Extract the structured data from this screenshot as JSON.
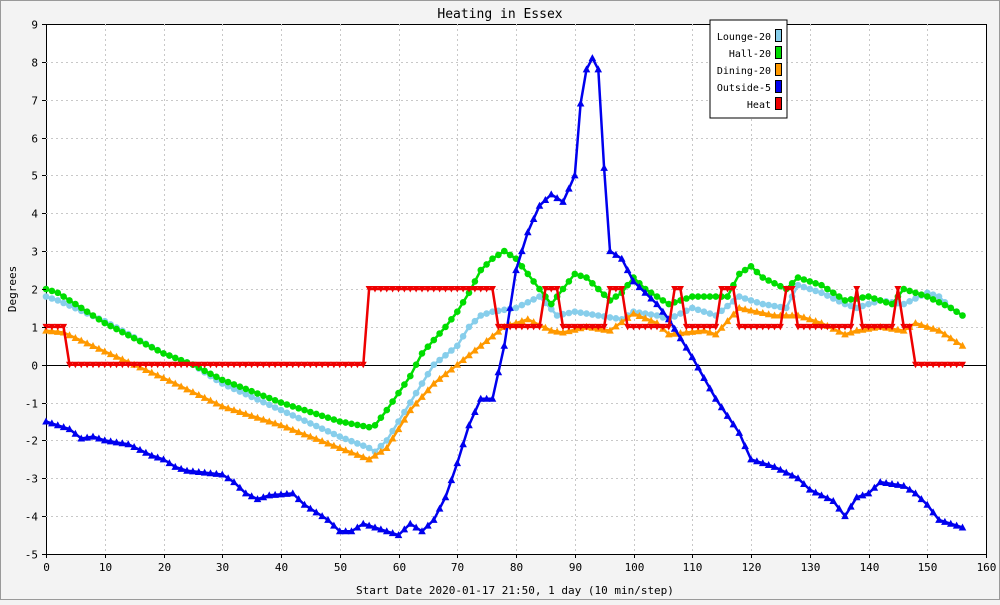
{
  "chart_data": {
    "type": "line",
    "title": "Heating in Essex",
    "xlabel": "Start Date 2020-01-17 21:50, 1 day (10 min/step)",
    "ylabel": "Degrees",
    "xlim": [
      0,
      160
    ],
    "ylim": [
      -5,
      9
    ],
    "xticks": [
      0,
      10,
      20,
      30,
      40,
      50,
      60,
      70,
      80,
      90,
      100,
      110,
      120,
      130,
      140,
      150,
      160
    ],
    "yticks": [
      -5,
      -4,
      -3,
      -2,
      -1,
      0,
      1,
      2,
      3,
      4,
      5,
      6,
      7,
      8,
      9
    ],
    "grid": true,
    "legend_position": "top-right",
    "series": [
      {
        "name": "Lounge-20",
        "color": "#87ceeb",
        "marker": "circle",
        "keypoints": [
          [
            0,
            1.8
          ],
          [
            2,
            1.7
          ],
          [
            10,
            1.15
          ],
          [
            20,
            0.3
          ],
          [
            25,
            0
          ],
          [
            30,
            -0.5
          ],
          [
            40,
            -1.2
          ],
          [
            50,
            -1.9
          ],
          [
            55,
            -2.2
          ],
          [
            56,
            -2.3
          ],
          [
            58,
            -2.0
          ],
          [
            62,
            -1.0
          ],
          [
            66,
            0.0
          ],
          [
            70,
            0.5
          ],
          [
            72,
            1.0
          ],
          [
            74,
            1.3
          ],
          [
            76,
            1.4
          ],
          [
            80,
            1.5
          ],
          [
            84,
            1.8
          ],
          [
            87,
            1.3
          ],
          [
            90,
            1.4
          ],
          [
            94,
            1.3
          ],
          [
            98,
            1.2
          ],
          [
            100,
            1.4
          ],
          [
            104,
            1.3
          ],
          [
            106,
            1.2
          ],
          [
            110,
            1.5
          ],
          [
            114,
            1.3
          ],
          [
            118,
            1.8
          ],
          [
            122,
            1.6
          ],
          [
            126,
            1.5
          ],
          [
            128,
            2.1
          ],
          [
            132,
            1.9
          ],
          [
            136,
            1.6
          ],
          [
            138,
            1.5
          ],
          [
            142,
            1.7
          ],
          [
            146,
            1.6
          ],
          [
            150,
            1.9
          ],
          [
            152,
            1.8
          ],
          [
            154,
            1.5
          ],
          [
            156,
            1.3
          ]
        ]
      },
      {
        "name": "Hall-20",
        "color": "#00dd00",
        "marker": "circle",
        "keypoints": [
          [
            0,
            2.0
          ],
          [
            2,
            1.9
          ],
          [
            10,
            1.1
          ],
          [
            20,
            0.3
          ],
          [
            25,
            0
          ],
          [
            30,
            -0.4
          ],
          [
            40,
            -1.0
          ],
          [
            50,
            -1.5
          ],
          [
            55,
            -1.65
          ],
          [
            56,
            -1.6
          ],
          [
            58,
            -1.2
          ],
          [
            62,
            -0.3
          ],
          [
            64,
            0.3
          ],
          [
            68,
            1.0
          ],
          [
            70,
            1.4
          ],
          [
            72,
            1.9
          ],
          [
            74,
            2.5
          ],
          [
            76,
            2.8
          ],
          [
            78,
            3.0
          ],
          [
            80,
            2.8
          ],
          [
            82,
            2.4
          ],
          [
            86,
            1.6
          ],
          [
            88,
            2.0
          ],
          [
            90,
            2.4
          ],
          [
            92,
            2.3
          ],
          [
            96,
            1.7
          ],
          [
            98,
            1.9
          ],
          [
            100,
            2.3
          ],
          [
            102,
            2.0
          ],
          [
            106,
            1.6
          ],
          [
            110,
            1.8
          ],
          [
            116,
            1.8
          ],
          [
            118,
            2.4
          ],
          [
            120,
            2.6
          ],
          [
            122,
            2.3
          ],
          [
            126,
            2.0
          ],
          [
            128,
            2.3
          ],
          [
            132,
            2.1
          ],
          [
            136,
            1.7
          ],
          [
            140,
            1.8
          ],
          [
            144,
            1.6
          ],
          [
            146,
            2.0
          ],
          [
            150,
            1.8
          ],
          [
            154,
            1.5
          ],
          [
            156,
            1.3
          ]
        ]
      },
      {
        "name": "Dining-20",
        "color": "#ff9900",
        "marker": "triangle",
        "keypoints": [
          [
            0,
            0.9
          ],
          [
            3,
            0.85
          ],
          [
            10,
            0.35
          ],
          [
            20,
            -0.35
          ],
          [
            30,
            -1.1
          ],
          [
            40,
            -1.6
          ],
          [
            50,
            -2.2
          ],
          [
            55,
            -2.5
          ],
          [
            58,
            -2.2
          ],
          [
            62,
            -1.2
          ],
          [
            66,
            -0.5
          ],
          [
            70,
            0.0
          ],
          [
            74,
            0.5
          ],
          [
            78,
            1.0
          ],
          [
            82,
            1.2
          ],
          [
            86,
            0.9
          ],
          [
            88,
            0.85
          ],
          [
            92,
            1.0
          ],
          [
            96,
            0.9
          ],
          [
            100,
            1.35
          ],
          [
            104,
            1.1
          ],
          [
            106,
            0.8
          ],
          [
            112,
            0.9
          ],
          [
            114,
            0.8
          ],
          [
            118,
            1.5
          ],
          [
            124,
            1.3
          ],
          [
            128,
            1.3
          ],
          [
            132,
            1.1
          ],
          [
            136,
            0.8
          ],
          [
            138,
            0.9
          ],
          [
            142,
            1.0
          ],
          [
            146,
            0.9
          ],
          [
            148,
            1.1
          ],
          [
            152,
            0.9
          ],
          [
            156,
            0.5
          ]
        ]
      },
      {
        "name": "Outside-5",
        "color": "#0000ee",
        "marker": "triangle",
        "keypoints": [
          [
            0,
            -1.5
          ],
          [
            4,
            -1.7
          ],
          [
            6,
            -1.95
          ],
          [
            8,
            -1.9
          ],
          [
            10,
            -2.0
          ],
          [
            14,
            -2.1
          ],
          [
            18,
            -2.4
          ],
          [
            20,
            -2.5
          ],
          [
            22,
            -2.7
          ],
          [
            24,
            -2.8
          ],
          [
            30,
            -2.9
          ],
          [
            32,
            -3.1
          ],
          [
            34,
            -3.4
          ],
          [
            36,
            -3.55
          ],
          [
            38,
            -3.45
          ],
          [
            42,
            -3.4
          ],
          [
            44,
            -3.7
          ],
          [
            48,
            -4.1
          ],
          [
            50,
            -4.4
          ],
          [
            52,
            -4.4
          ],
          [
            54,
            -4.2
          ],
          [
            58,
            -4.4
          ],
          [
            60,
            -4.5
          ],
          [
            62,
            -4.2
          ],
          [
            64,
            -4.4
          ],
          [
            66,
            -4.1
          ],
          [
            68,
            -3.5
          ],
          [
            70,
            -2.6
          ],
          [
            72,
            -1.6
          ],
          [
            74,
            -0.9
          ],
          [
            76,
            -0.9
          ],
          [
            78,
            0.5
          ],
          [
            80,
            2.5
          ],
          [
            82,
            3.5
          ],
          [
            84,
            4.2
          ],
          [
            86,
            4.5
          ],
          [
            88,
            4.3
          ],
          [
            90,
            5.0
          ],
          [
            91,
            6.9
          ],
          [
            92,
            7.8
          ],
          [
            93,
            8.1
          ],
          [
            94,
            7.8
          ],
          [
            95,
            5.2
          ],
          [
            96,
            3.0
          ],
          [
            98,
            2.8
          ],
          [
            100,
            2.2
          ],
          [
            104,
            1.6
          ],
          [
            106,
            1.2
          ],
          [
            110,
            0.2
          ],
          [
            114,
            -0.9
          ],
          [
            118,
            -1.8
          ],
          [
            120,
            -2.5
          ],
          [
            124,
            -2.7
          ],
          [
            128,
            -3.0
          ],
          [
            130,
            -3.3
          ],
          [
            134,
            -3.6
          ],
          [
            136,
            -4.0
          ],
          [
            138,
            -3.5
          ],
          [
            140,
            -3.4
          ],
          [
            142,
            -3.1
          ],
          [
            146,
            -3.2
          ],
          [
            148,
            -3.4
          ],
          [
            150,
            -3.7
          ],
          [
            152,
            -4.1
          ],
          [
            154,
            -4.2
          ],
          [
            156,
            -4.3
          ]
        ]
      },
      {
        "name": "Heat",
        "color": "#ee0000",
        "marker": "triangle-down",
        "keypoints": [
          [
            0,
            1
          ],
          [
            3,
            1
          ],
          [
            4,
            0
          ],
          [
            54,
            0
          ],
          [
            55,
            2
          ],
          [
            76,
            2
          ],
          [
            77,
            1
          ],
          [
            84,
            1
          ],
          [
            85,
            2
          ],
          [
            87,
            2
          ],
          [
            88,
            1
          ],
          [
            95,
            1
          ],
          [
            96,
            2
          ],
          [
            98,
            2
          ],
          [
            99,
            1
          ],
          [
            106,
            1
          ],
          [
            107,
            2
          ],
          [
            108,
            2
          ],
          [
            109,
            1
          ],
          [
            114,
            1
          ],
          [
            115,
            2
          ],
          [
            117,
            2
          ],
          [
            118,
            1
          ],
          [
            125,
            1
          ],
          [
            126,
            2
          ],
          [
            127,
            2
          ],
          [
            128,
            1
          ],
          [
            137,
            1
          ],
          [
            138,
            2
          ],
          [
            139,
            1
          ],
          [
            144,
            1
          ],
          [
            145,
            2
          ],
          [
            146,
            1
          ],
          [
            147,
            1
          ],
          [
            148,
            0
          ],
          [
            156,
            0
          ]
        ]
      }
    ]
  }
}
